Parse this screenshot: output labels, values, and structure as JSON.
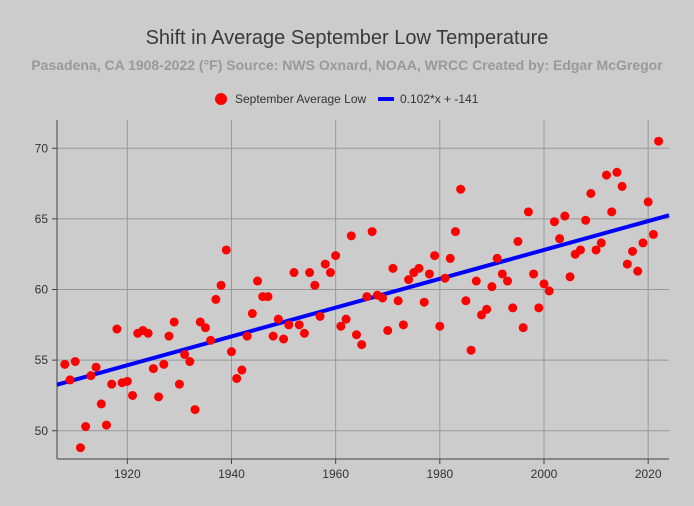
{
  "chart_data": {
    "type": "scatter",
    "title": "Shift in Average September Low Temperature",
    "subtitle": "Pasadena, CA 1908-2022 (°F) Source: NWS Oxnard, NOAA, WRCC Created by: Edgar McGregor",
    "xlabel": "",
    "ylabel": "",
    "xlim": [
      1906.5,
      2024
    ],
    "ylim": [
      48,
      72
    ],
    "grid": true,
    "legend_position": "top-center",
    "x_ticks": [
      1920,
      1940,
      1960,
      1980,
      2000,
      2020
    ],
    "y_ticks": [
      50,
      55,
      60,
      65,
      70
    ],
    "series": [
      {
        "name": "September Average Low",
        "kind": "scatter",
        "color": "#ff0000",
        "points": [
          [
            1908,
            54.7
          ],
          [
            1909,
            53.6
          ],
          [
            1910,
            54.9
          ],
          [
            1911,
            48.8
          ],
          [
            1912,
            50.3
          ],
          [
            1913,
            53.9
          ],
          [
            1914,
            54.5
          ],
          [
            1915,
            51.9
          ],
          [
            1916,
            50.4
          ],
          [
            1917,
            53.3
          ],
          [
            1918,
            57.2
          ],
          [
            1919,
            53.4
          ],
          [
            1920,
            53.5
          ],
          [
            1921,
            52.5
          ],
          [
            1922,
            56.9
          ],
          [
            1923,
            57.1
          ],
          [
            1924,
            56.9
          ],
          [
            1925,
            54.4
          ],
          [
            1926,
            52.4
          ],
          [
            1927,
            54.7
          ],
          [
            1928,
            56.7
          ],
          [
            1929,
            57.7
          ],
          [
            1930,
            53.3
          ],
          [
            1931,
            55.4
          ],
          [
            1932,
            54.9
          ],
          [
            1933,
            51.5
          ],
          [
            1934,
            57.7
          ],
          [
            1935,
            57.3
          ],
          [
            1936,
            56.4
          ],
          [
            1937,
            59.3
          ],
          [
            1938,
            60.3
          ],
          [
            1939,
            62.8
          ],
          [
            1940,
            55.6
          ],
          [
            1941,
            53.7
          ],
          [
            1942,
            54.3
          ],
          [
            1943,
            56.7
          ],
          [
            1944,
            58.3
          ],
          [
            1945,
            60.6
          ],
          [
            1946,
            59.5
          ],
          [
            1947,
            59.5
          ],
          [
            1948,
            56.7
          ],
          [
            1949,
            57.9
          ],
          [
            1950,
            56.5
          ],
          [
            1951,
            57.5
          ],
          [
            1952,
            61.2
          ],
          [
            1953,
            57.5
          ],
          [
            1954,
            56.9
          ],
          [
            1955,
            61.2
          ],
          [
            1956,
            60.3
          ],
          [
            1957,
            58.1
          ],
          [
            1958,
            61.8
          ],
          [
            1959,
            61.2
          ],
          [
            1960,
            62.4
          ],
          [
            1961,
            57.4
          ],
          [
            1962,
            57.9
          ],
          [
            1963,
            63.8
          ],
          [
            1964,
            56.8
          ],
          [
            1965,
            56.1
          ],
          [
            1966,
            59.5
          ],
          [
            1967,
            64.1
          ],
          [
            1968,
            59.6
          ],
          [
            1969,
            59.4
          ],
          [
            1970,
            57.1
          ],
          [
            1971,
            61.5
          ],
          [
            1972,
            59.2
          ],
          [
            1973,
            57.5
          ],
          [
            1974,
            60.7
          ],
          [
            1975,
            61.2
          ],
          [
            1976,
            61.5
          ],
          [
            1977,
            59.1
          ],
          [
            1978,
            61.1
          ],
          [
            1979,
            62.4
          ],
          [
            1980,
            57.4
          ],
          [
            1981,
            60.8
          ],
          [
            1982,
            62.2
          ],
          [
            1983,
            64.1
          ],
          [
            1984,
            67.1
          ],
          [
            1985,
            59.2
          ],
          [
            1986,
            55.7
          ],
          [
            1987,
            60.6
          ],
          [
            1988,
            58.2
          ],
          [
            1989,
            58.6
          ],
          [
            1990,
            60.2
          ],
          [
            1991,
            62.2
          ],
          [
            1992,
            61.1
          ],
          [
            1993,
            60.6
          ],
          [
            1994,
            58.7
          ],
          [
            1995,
            63.4
          ],
          [
            1996,
            57.3
          ],
          [
            1997,
            65.5
          ],
          [
            1998,
            61.1
          ],
          [
            1999,
            58.7
          ],
          [
            2000,
            60.4
          ],
          [
            2001,
            59.9
          ],
          [
            2002,
            64.8
          ],
          [
            2003,
            63.6
          ],
          [
            2004,
            65.2
          ],
          [
            2005,
            60.9
          ],
          [
            2006,
            62.5
          ],
          [
            2007,
            62.8
          ],
          [
            2008,
            64.9
          ],
          [
            2009,
            66.8
          ],
          [
            2010,
            62.8
          ],
          [
            2011,
            63.3
          ],
          [
            2012,
            68.1
          ],
          [
            2013,
            65.5
          ],
          [
            2014,
            68.3
          ],
          [
            2015,
            67.3
          ],
          [
            2016,
            61.8
          ],
          [
            2017,
            62.7
          ],
          [
            2018,
            61.3
          ],
          [
            2019,
            63.3
          ],
          [
            2020,
            66.2
          ],
          [
            2021,
            63.9
          ],
          [
            2022,
            70.5
          ]
        ]
      },
      {
        "name": "0.102*x + -141",
        "kind": "line",
        "color": "#0000ff",
        "x": [
          1906.5,
          2024
        ],
        "y": [
          53.26,
          65.25
        ]
      }
    ]
  }
}
